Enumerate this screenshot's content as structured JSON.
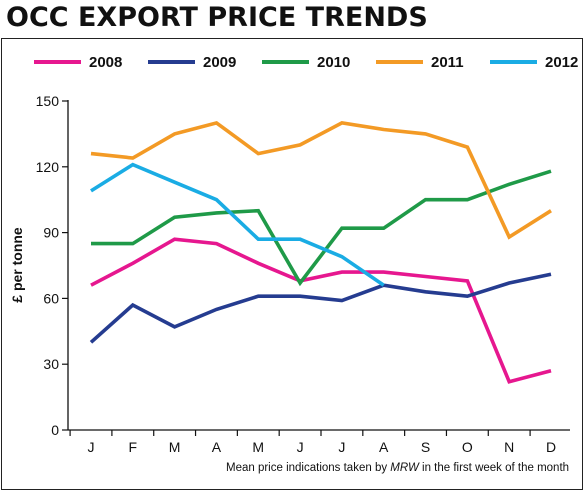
{
  "title": "OCC EXPORT PRICE TRENDS",
  "footnote": {
    "before": "Mean price indications taken by ",
    "italic": "MRW",
    "after": " in the first week of the month"
  },
  "chart_data": {
    "type": "line",
    "x": [
      "J",
      "F",
      "M",
      "A",
      "M",
      "J",
      "J",
      "A",
      "S",
      "O",
      "N",
      "D"
    ],
    "ylabel": "£ per tonne",
    "ylim": [
      0,
      150
    ],
    "yticks": [
      0,
      30,
      60,
      90,
      120,
      150
    ],
    "grid": false,
    "legend": "top",
    "series": [
      {
        "name": "2008",
        "color": "#e6178f",
        "values": [
          66,
          76,
          87,
          85,
          76,
          68,
          72,
          72,
          70,
          68,
          22,
          27
        ]
      },
      {
        "name": "2009",
        "color": "#253c90",
        "values": [
          40,
          57,
          47,
          55,
          61,
          61,
          59,
          66,
          63,
          61,
          67,
          71
        ]
      },
      {
        "name": "2010",
        "color": "#1f9a48",
        "values": [
          85,
          85,
          97,
          99,
          100,
          67,
          92,
          92,
          105,
          105,
          112,
          118
        ]
      },
      {
        "name": "2011",
        "color": "#f39a25",
        "values": [
          126,
          124,
          135,
          140,
          126,
          130,
          140,
          137,
          135,
          129,
          88,
          100
        ]
      },
      {
        "name": "2012",
        "color": "#1aace4",
        "values": [
          109,
          121,
          113,
          105,
          87,
          87,
          79,
          66,
          null,
          null,
          null,
          null
        ]
      }
    ]
  }
}
